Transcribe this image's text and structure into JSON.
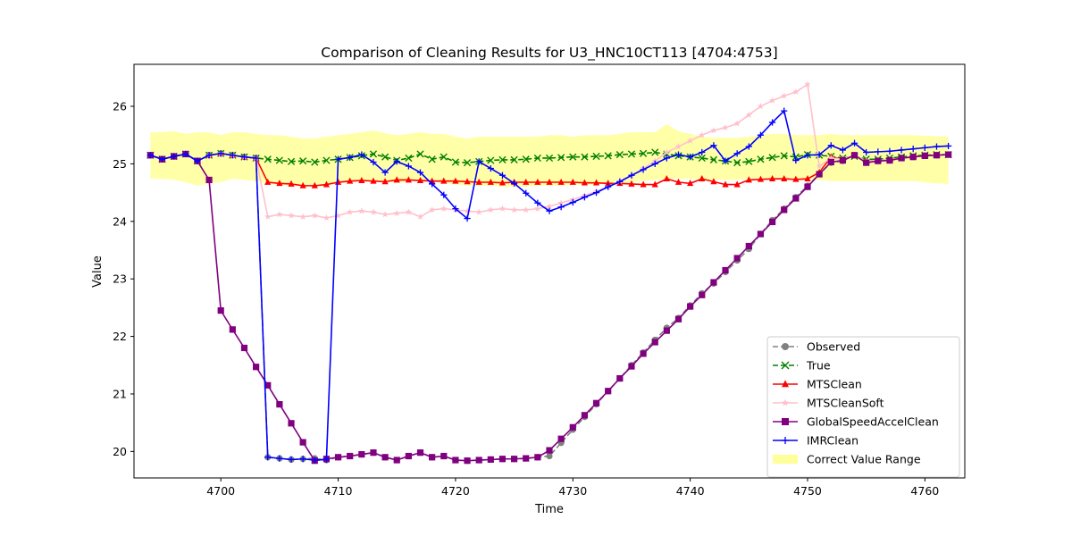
{
  "chart_data": {
    "type": "line",
    "title": "Comparison of Cleaning Results for U3_HNC10CT113 [4704:4753]",
    "xlabel": "Time",
    "ylabel": "Value",
    "xlim": [
      4692.6,
      4763.4
    ],
    "ylim": [
      19.54,
      26.73
    ],
    "x_ticks": [
      4700,
      4710,
      4720,
      4730,
      4740,
      4750,
      4760
    ],
    "y_ticks": [
      20,
      21,
      22,
      23,
      24,
      25,
      26
    ],
    "x_tick_labels": [
      "4700",
      "4710",
      "4720",
      "4730",
      "4740",
      "4750",
      "4760"
    ],
    "y_tick_labels": [
      "20",
      "21",
      "22",
      "23",
      "24",
      "25",
      "26"
    ],
    "grid": false,
    "legend_position": "lower-right",
    "x": [
      4694,
      4695,
      4696,
      4697,
      4698,
      4699,
      4700,
      4701,
      4702,
      4703,
      4704,
      4705,
      4706,
      4707,
      4708,
      4709,
      4710,
      4711,
      4712,
      4713,
      4714,
      4715,
      4716,
      4717,
      4718,
      4719,
      4720,
      4721,
      4722,
      4723,
      4724,
      4725,
      4726,
      4727,
      4728,
      4729,
      4730,
      4731,
      4732,
      4733,
      4734,
      4735,
      4736,
      4737,
      4738,
      4739,
      4740,
      4741,
      4742,
      4743,
      4744,
      4745,
      4746,
      4747,
      4748,
      4749,
      4750,
      4751,
      4752,
      4753,
      4754,
      4755,
      4756,
      4757,
      4758,
      4759,
      4760,
      4761,
      4762
    ],
    "band": {
      "name": "Correct Value Range",
      "color": "#ffff99",
      "upper": [
        25.55,
        25.55,
        25.57,
        25.52,
        25.55,
        25.55,
        25.5,
        25.55,
        25.55,
        25.52,
        25.5,
        25.5,
        25.47,
        25.44,
        25.44,
        25.47,
        25.5,
        25.52,
        25.55,
        25.58,
        25.53,
        25.5,
        25.52,
        25.55,
        25.52,
        25.52,
        25.47,
        25.44,
        25.47,
        25.47,
        25.47,
        25.47,
        25.47,
        25.47,
        25.5,
        25.5,
        25.47,
        25.5,
        25.5,
        25.5,
        25.52,
        25.55,
        25.55,
        25.55,
        25.69,
        25.57,
        25.52,
        25.47,
        25.45,
        25.45,
        25.45,
        25.47,
        25.5,
        25.52,
        25.52,
        25.5,
        25.5,
        25.5,
        25.52,
        25.5,
        25.5,
        25.5,
        25.5,
        25.5,
        25.5,
        25.5,
        25.49,
        25.48,
        25.47
      ],
      "lower": [
        24.74,
        24.74,
        24.72,
        24.68,
        24.62,
        24.66,
        24.68,
        24.74,
        24.72,
        24.7,
        24.66,
        24.64,
        24.62,
        24.62,
        24.62,
        24.64,
        24.66,
        24.68,
        24.7,
        24.72,
        24.7,
        24.66,
        24.7,
        24.72,
        24.7,
        24.66,
        24.64,
        24.62,
        24.62,
        24.62,
        24.6,
        24.6,
        24.6,
        24.62,
        24.62,
        24.62,
        24.64,
        24.64,
        24.64,
        24.66,
        24.66,
        24.68,
        24.7,
        24.72,
        24.74,
        24.74,
        24.74,
        24.72,
        24.72,
        24.72,
        24.72,
        24.74,
        24.74,
        24.74,
        24.72,
        24.72,
        24.72,
        24.72,
        24.7,
        24.7,
        24.7,
        24.7,
        24.7,
        24.7,
        24.7,
        24.7,
        24.68,
        24.66,
        24.65
      ]
    },
    "series": [
      {
        "name": "Observed",
        "color": "#808080",
        "dashed": true,
        "marker": "circle",
        "values": [
          25.15,
          25.08,
          25.13,
          25.17,
          25.05,
          25.15,
          25.18,
          25.15,
          25.12,
          25.1,
          19.9,
          19.88,
          19.86,
          19.87,
          19.88,
          19.85,
          19.9,
          19.92,
          19.95,
          19.98,
          19.9,
          19.85,
          19.92,
          19.98,
          19.9,
          19.92,
          19.85,
          19.84,
          19.85,
          19.86,
          19.87,
          19.87,
          19.88,
          19.9,
          19.92,
          20.15,
          20.38,
          20.6,
          20.82,
          21.05,
          21.27,
          21.5,
          21.72,
          21.94,
          22.15,
          22.32,
          22.54,
          22.75,
          22.92,
          23.12,
          23.32,
          23.52,
          23.78,
          24.02,
          24.22,
          24.42,
          24.62,
          24.82,
          25.02,
          25.05,
          25.15,
          25.02,
          25.05,
          25.06,
          25.1,
          25.12,
          25.14,
          25.15,
          25.16
        ]
      },
      {
        "name": "True",
        "color": "#008000",
        "dashed": true,
        "marker": "x",
        "values": [
          25.15,
          25.08,
          25.13,
          25.17,
          25.05,
          25.15,
          25.18,
          25.15,
          25.12,
          25.1,
          25.08,
          25.06,
          25.04,
          25.05,
          25.03,
          25.06,
          25.08,
          25.11,
          25.14,
          25.17,
          25.12,
          25.06,
          25.1,
          25.17,
          25.08,
          25.12,
          25.03,
          25.02,
          25.04,
          25.06,
          25.07,
          25.07,
          25.08,
          25.1,
          25.1,
          25.11,
          25.12,
          25.12,
          25.13,
          25.14,
          25.16,
          25.17,
          25.18,
          25.2,
          25.17,
          25.14,
          25.12,
          25.1,
          25.07,
          25.05,
          25.02,
          25.04,
          25.08,
          25.11,
          25.14,
          25.12,
          25.16,
          25.15,
          25.13,
          25.1,
          25.13,
          25.08,
          25.08,
          25.1,
          25.12,
          25.14,
          25.15,
          25.16,
          25.16
        ]
      },
      {
        "name": "MTSClean",
        "color": "#ff0000",
        "dashed": false,
        "marker": "triangle",
        "values": [
          25.15,
          25.08,
          25.13,
          25.17,
          25.05,
          25.15,
          25.18,
          25.15,
          25.12,
          25.1,
          24.68,
          24.66,
          24.65,
          24.62,
          24.62,
          24.64,
          24.68,
          24.7,
          24.71,
          24.7,
          24.69,
          24.72,
          24.72,
          24.71,
          24.7,
          24.7,
          24.7,
          24.69,
          24.68,
          24.68,
          24.67,
          24.68,
          24.68,
          24.68,
          24.68,
          24.68,
          24.68,
          24.67,
          24.67,
          24.66,
          24.66,
          24.65,
          24.64,
          24.64,
          24.74,
          24.68,
          24.66,
          24.74,
          24.69,
          24.64,
          24.64,
          24.72,
          24.73,
          24.74,
          24.74,
          24.73,
          24.74,
          24.85,
          25.12,
          25.08,
          25.15,
          25.05,
          25.06,
          25.07,
          25.1,
          25.12,
          25.14,
          25.15,
          25.16
        ]
      },
      {
        "name": "MTSCleanSoft",
        "color": "#ffc0cb",
        "dashed": false,
        "marker": "star",
        "values": [
          25.15,
          25.08,
          25.13,
          25.17,
          25.05,
          25.15,
          25.18,
          25.15,
          25.12,
          25.1,
          24.08,
          24.12,
          24.1,
          24.08,
          24.1,
          24.06,
          24.1,
          24.16,
          24.18,
          24.16,
          24.12,
          24.14,
          24.16,
          24.08,
          24.2,
          24.22,
          24.2,
          24.18,
          24.16,
          24.2,
          24.22,
          24.2,
          24.2,
          24.22,
          24.26,
          24.32,
          24.38,
          24.45,
          24.52,
          24.6,
          24.7,
          24.8,
          24.92,
          25.05,
          25.2,
          25.3,
          25.4,
          25.5,
          25.58,
          25.63,
          25.7,
          25.85,
          26.0,
          26.1,
          26.18,
          26.25,
          26.38,
          24.96,
          25.1,
          25.08,
          25.15,
          25.05,
          25.06,
          25.07,
          25.1,
          25.12,
          25.14,
          25.15,
          25.16
        ]
      },
      {
        "name": "GlobalSpeedAccelClean",
        "color": "#800080",
        "dashed": false,
        "marker": "square",
        "values": [
          25.15,
          25.08,
          25.13,
          25.17,
          25.05,
          24.72,
          22.45,
          22.12,
          21.8,
          21.47,
          21.15,
          20.82,
          20.49,
          20.16,
          19.84,
          19.87,
          19.9,
          19.92,
          19.95,
          19.98,
          19.9,
          19.85,
          19.92,
          19.98,
          19.9,
          19.92,
          19.85,
          19.84,
          19.85,
          19.86,
          19.87,
          19.87,
          19.88,
          19.9,
          20.02,
          20.22,
          20.42,
          20.63,
          20.84,
          21.05,
          21.27,
          21.48,
          21.7,
          21.9,
          22.1,
          22.3,
          22.52,
          22.72,
          22.94,
          23.15,
          23.36,
          23.57,
          23.78,
          23.99,
          24.2,
          24.4,
          24.6,
          24.82,
          25.03,
          25.06,
          25.15,
          25.02,
          25.05,
          25.06,
          25.1,
          25.12,
          25.14,
          25.15,
          25.16
        ]
      },
      {
        "name": "IMRClean",
        "color": "#0000ff",
        "dashed": false,
        "marker": "plus",
        "values": [
          25.15,
          25.08,
          25.13,
          25.17,
          25.05,
          25.15,
          25.18,
          25.15,
          25.12,
          25.1,
          19.9,
          19.88,
          19.86,
          19.87,
          19.85,
          19.86,
          25.08,
          25.11,
          25.16,
          25.03,
          24.85,
          25.04,
          24.96,
          24.85,
          24.65,
          24.46,
          24.22,
          24.05,
          25.04,
          24.92,
          24.8,
          24.66,
          24.49,
          24.32,
          24.18,
          24.25,
          24.33,
          24.42,
          24.5,
          24.6,
          24.69,
          24.8,
          24.9,
          25.0,
          25.1,
          25.16,
          25.12,
          25.2,
          25.32,
          25.05,
          25.18,
          25.3,
          25.5,
          25.72,
          25.92,
          25.06,
          25.15,
          25.16,
          25.32,
          25.24,
          25.36,
          25.2,
          25.21,
          25.22,
          25.24,
          25.26,
          25.28,
          25.3,
          25.31
        ]
      }
    ]
  }
}
